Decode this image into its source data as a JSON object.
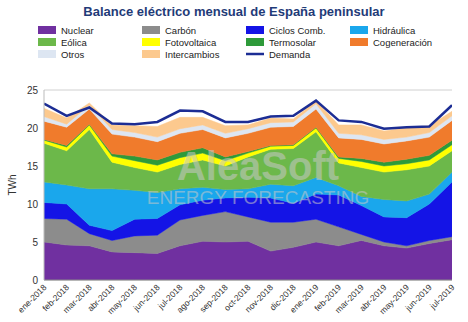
{
  "chart_data": {
    "type": "area",
    "title": "Balance eléctrico mensual de España peninsular",
    "y_label": "TWh",
    "annotations": [
      "AleaSoft",
      "ENERGY FORECASTING"
    ],
    "stacked": true,
    "grid": true,
    "legend": "top",
    "categories": [
      "ene-2018",
      "feb-2018",
      "mar-2018",
      "abr-2018",
      "may-2018",
      "jun-2018",
      "jul-2018",
      "ago-2018",
      "sep-2018",
      "oct-2018",
      "nov-2018",
      "dic-2018",
      "ene-2019",
      "feb-2019",
      "mar-2019",
      "abr-2019",
      "may-2019",
      "jun-2019",
      "jul-2019"
    ],
    "ylim": [
      0,
      25
    ],
    "yticks": [
      0,
      5,
      10,
      15,
      20,
      25
    ],
    "series": [
      {
        "name": "Nuclear",
        "color": "#7030a0",
        "values": [
          5.0,
          4.6,
          4.5,
          3.7,
          3.6,
          3.5,
          4.5,
          5.1,
          5.0,
          5.1,
          3.8,
          4.3,
          5.0,
          4.5,
          5.2,
          4.5,
          4.2,
          4.8,
          5.3
        ]
      },
      {
        "name": "Carbón",
        "color": "#8c8c8c",
        "values": [
          3.1,
          3.4,
          1.6,
          1.5,
          2.2,
          2.4,
          3.4,
          3.4,
          4.0,
          3.2,
          3.8,
          3.3,
          3.0,
          2.5,
          0.8,
          0.5,
          0.3,
          0.4,
          0.4
        ]
      },
      {
        "name": "Ciclos Comb.",
        "color": "#1414e6",
        "values": [
          2.1,
          2.0,
          1.1,
          1.3,
          2.2,
          2.2,
          2.0,
          2.0,
          1.8,
          2.6,
          3.2,
          2.5,
          3.3,
          4.2,
          3.8,
          3.3,
          3.7,
          4.8,
          7.2
        ]
      },
      {
        "name": "Hidráulica",
        "color": "#1aa7ec",
        "values": [
          2.7,
          2.5,
          4.8,
          5.5,
          3.8,
          3.4,
          2.1,
          1.7,
          1.1,
          1.1,
          1.8,
          2.3,
          2.2,
          1.2,
          1.2,
          2.3,
          2.2,
          1.3,
          1.3
        ]
      },
      {
        "name": "Eólica",
        "color": "#6cb84a",
        "values": [
          5.1,
          4.5,
          7.8,
          3.5,
          3.0,
          2.7,
          3.2,
          3.6,
          3.1,
          4.2,
          4.6,
          4.9,
          6.0,
          3.0,
          3.8,
          3.6,
          4.1,
          3.7,
          2.8
        ]
      },
      {
        "name": "Fotovoltaica",
        "color": "#ffff00",
        "values": [
          0.4,
          0.5,
          0.6,
          0.8,
          0.9,
          0.9,
          0.9,
          0.9,
          0.7,
          0.5,
          0.4,
          0.4,
          0.5,
          0.6,
          0.8,
          0.8,
          0.8,
          0.8,
          0.8
        ]
      },
      {
        "name": "Termosolar",
        "color": "#2e9a3a",
        "values": [
          0.1,
          0.2,
          0.1,
          0.3,
          0.6,
          0.7,
          0.7,
          0.7,
          0.5,
          0.2,
          0.1,
          0.1,
          0.1,
          0.2,
          0.4,
          0.5,
          0.6,
          0.6,
          0.6
        ]
      },
      {
        "name": "Cogeneración",
        "color": "#f07b2c",
        "values": [
          2.4,
          2.4,
          2.0,
          2.6,
          2.5,
          2.4,
          2.5,
          2.4,
          2.5,
          2.4,
          2.4,
          2.4,
          2.4,
          2.5,
          2.5,
          2.4,
          2.4,
          2.4,
          2.6
        ]
      },
      {
        "name": "Otros",
        "color": "#dde6f2",
        "values": [
          0.6,
          0.4,
          0.5,
          0.6,
          0.6,
          0.6,
          0.6,
          0.6,
          0.6,
          0.6,
          0.6,
          0.6,
          0.7,
          0.6,
          0.6,
          0.6,
          0.5,
          0.6,
          0.6
        ]
      },
      {
        "name": "Intercambios",
        "color": "#fcc98e",
        "values": [
          1.1,
          0.8,
          0.3,
          0.6,
          0.9,
          1.4,
          1.5,
          1.0,
          1.0,
          0.5,
          0.6,
          0.4,
          0.4,
          1.1,
          1.3,
          1.1,
          1.2,
          0.9,
          0.6
        ]
      },
      {
        "name": "Demanda",
        "color": "#1c2d94",
        "type": "line",
        "values": [
          23.2,
          21.6,
          22.7,
          20.6,
          20.5,
          20.8,
          22.3,
          22.2,
          20.8,
          20.8,
          21.5,
          21.6,
          23.6,
          21.0,
          20.8,
          19.9,
          20.1,
          20.2,
          23.0
        ]
      }
    ]
  }
}
